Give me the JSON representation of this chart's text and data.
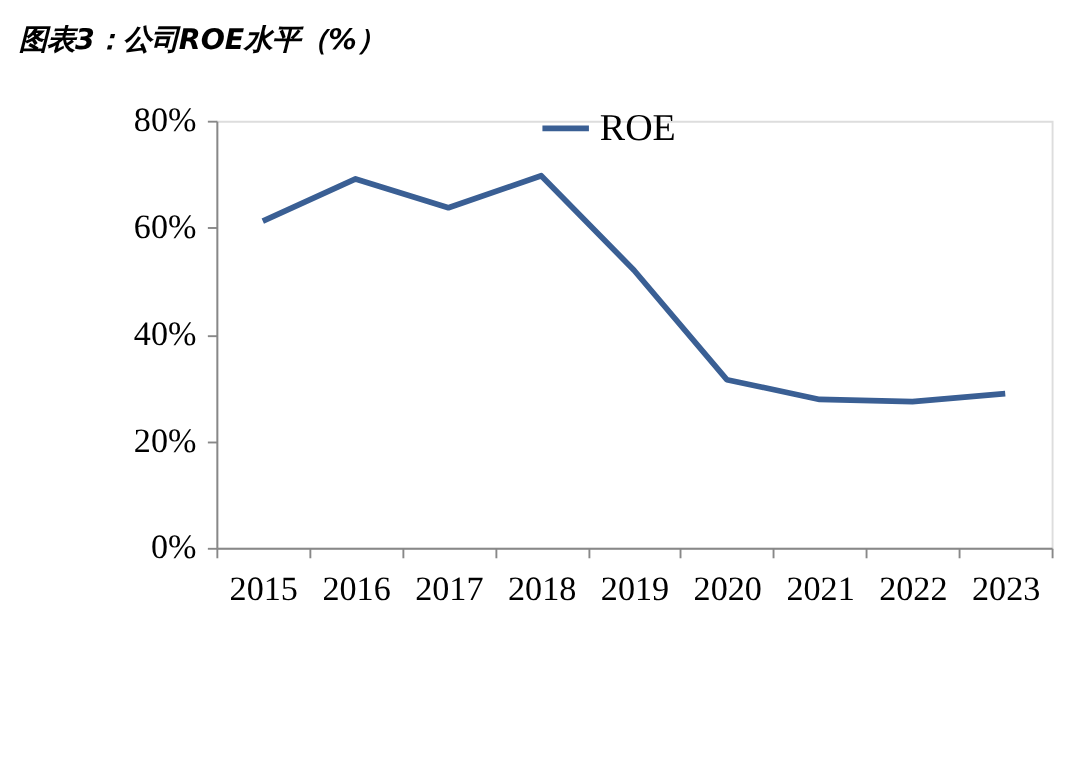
{
  "chart_data": {
    "type": "line",
    "title": "图表3：公司ROE水平（%）",
    "categories": [
      "2015",
      "2016",
      "2017",
      "2018",
      "2019",
      "2020",
      "2021",
      "2022",
      "2023"
    ],
    "series": [
      {
        "name": "ROE",
        "color": "#3a5f94",
        "values": [
          61.2,
          69.1,
          63.7,
          69.7,
          52.0,
          31.5,
          27.8,
          27.4,
          28.9
        ]
      }
    ],
    "ylim": [
      0,
      80
    ],
    "yticks": [
      {
        "value": 0,
        "label": "0%"
      },
      {
        "value": 20,
        "label": "20%"
      },
      {
        "value": 40,
        "label": "40%"
      },
      {
        "value": 60,
        "label": "60%"
      },
      {
        "value": 80,
        "label": "80%"
      }
    ],
    "grid": false,
    "legend": "top",
    "marker": "none",
    "line_style": "solid"
  }
}
